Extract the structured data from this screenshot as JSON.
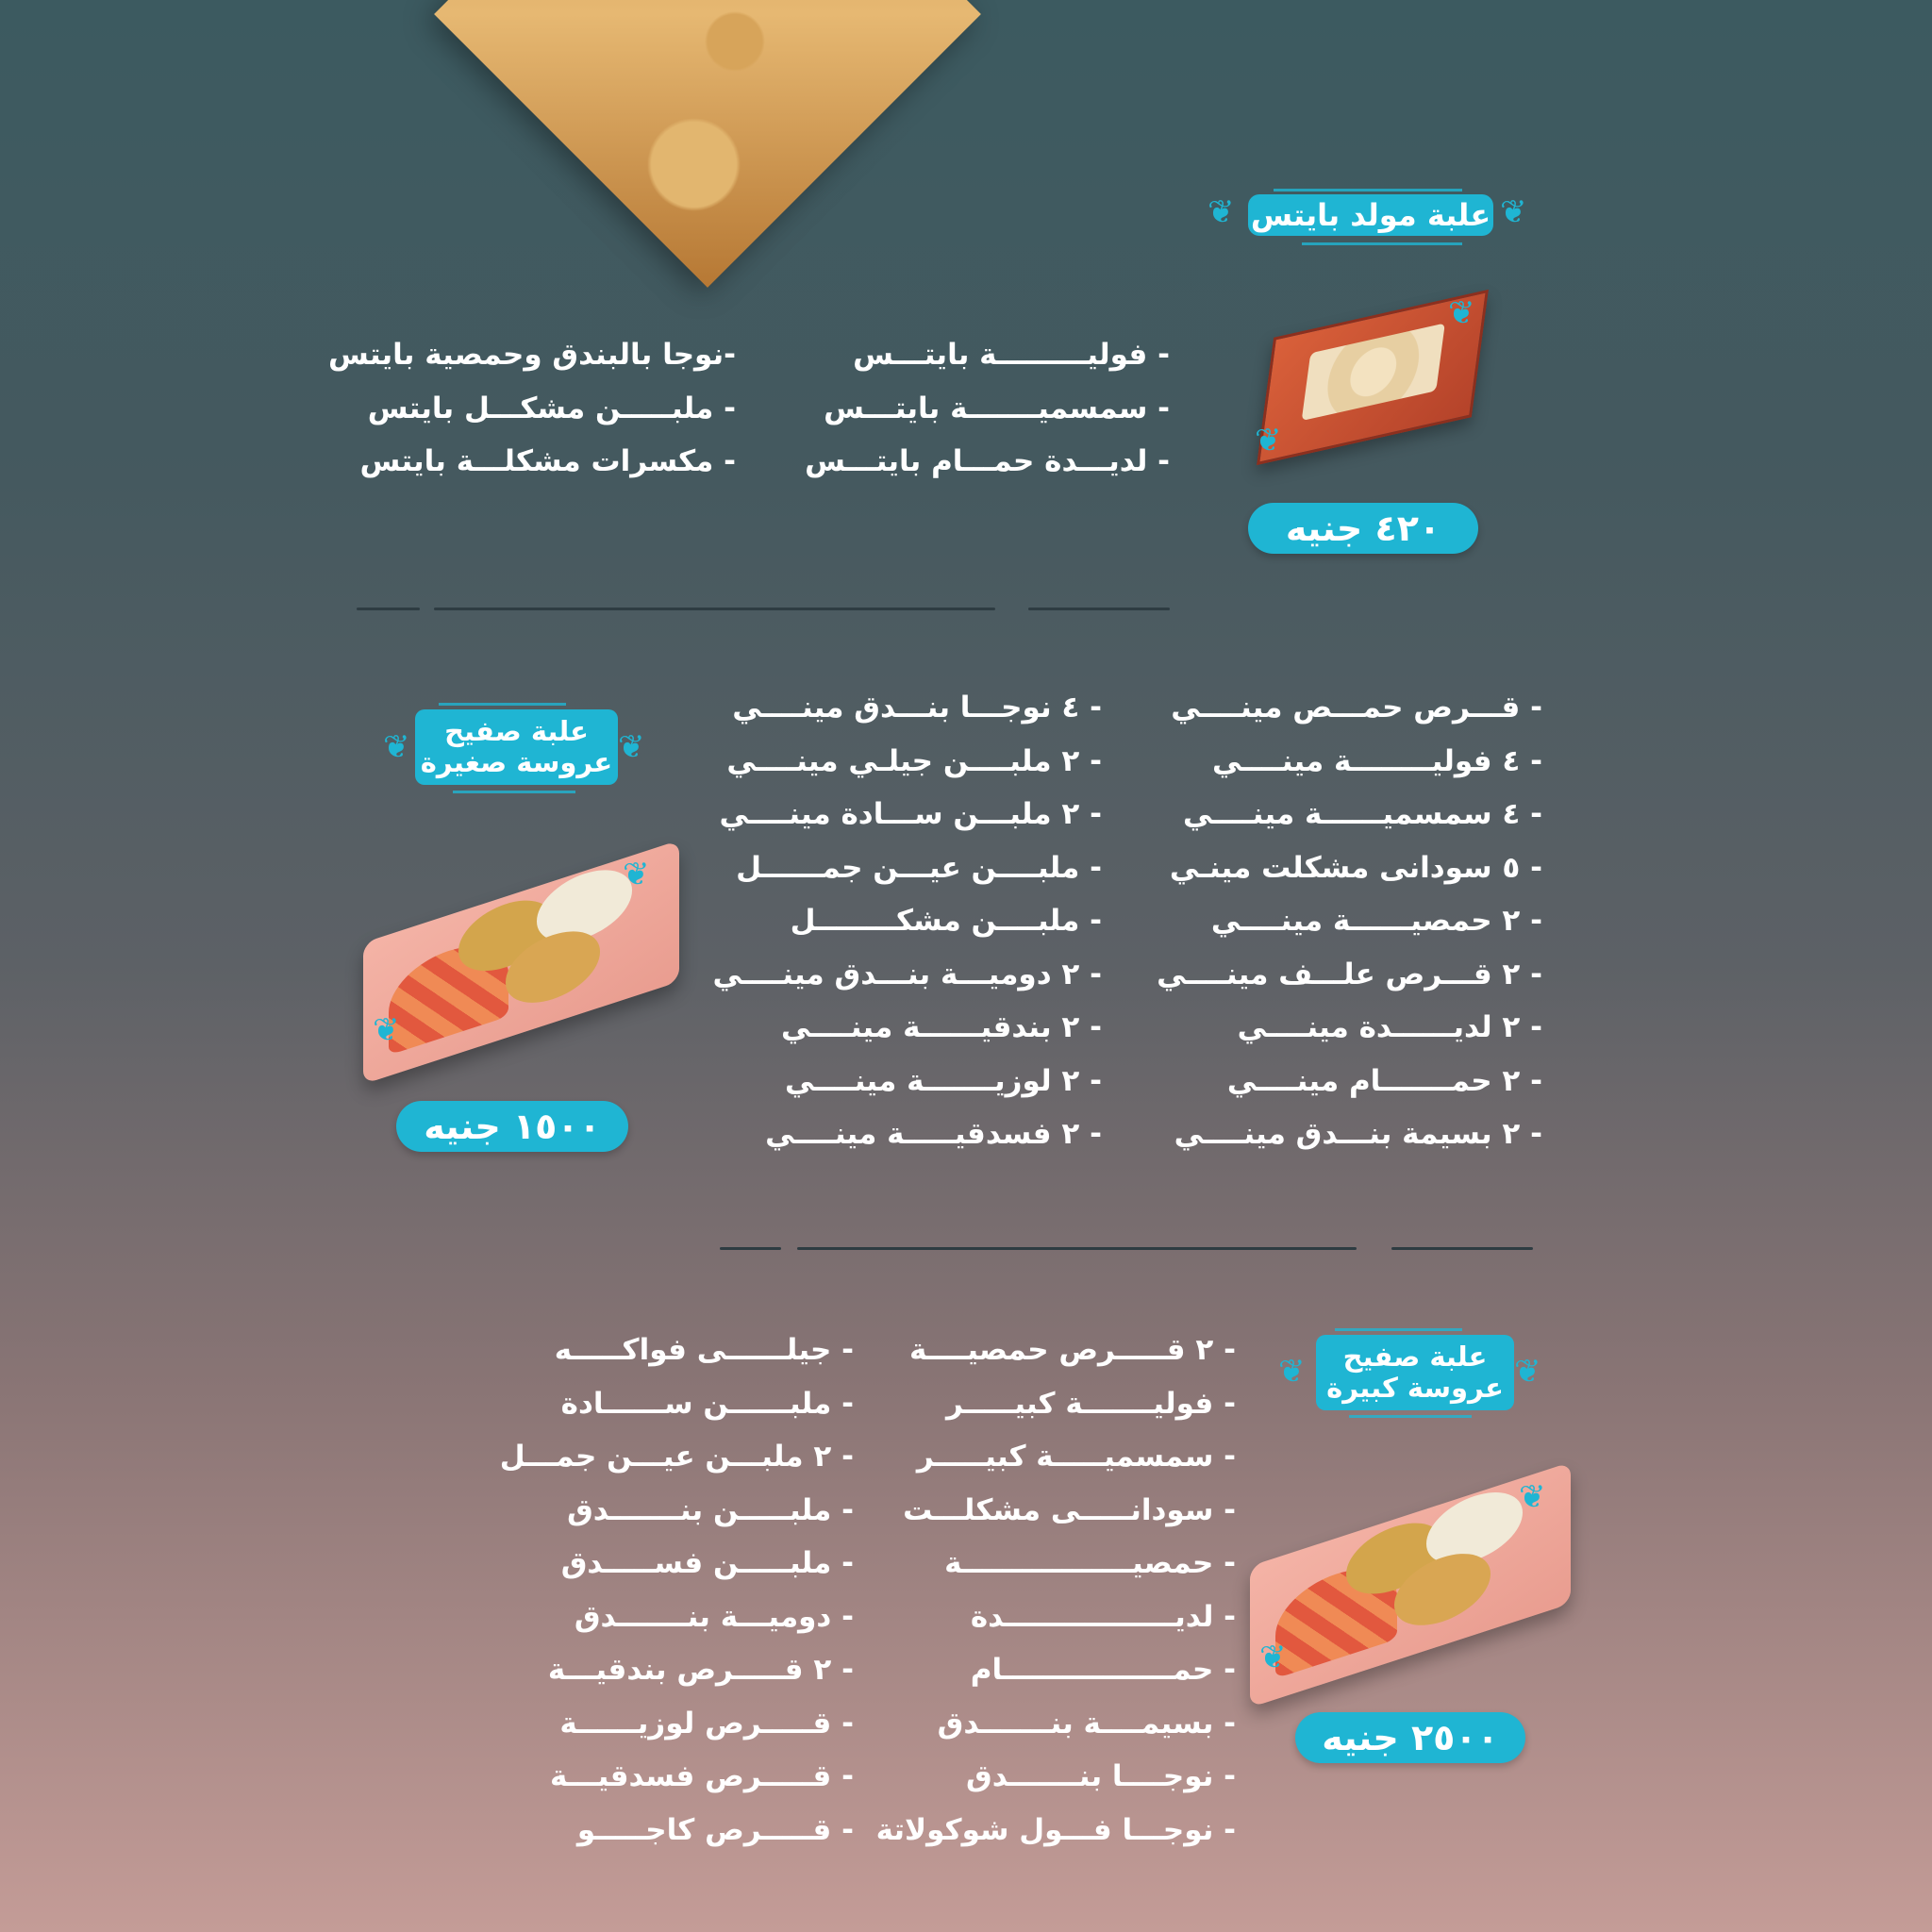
{
  "colors": {
    "accent": "#1fb5d3",
    "text": "#ffffff"
  },
  "section1": {
    "title": "علبة مولد بايتس",
    "price": "٤٢٠ جنيه",
    "col_right": [
      "- فوليـــــــــة بايتـــس",
      "- سمسميـــــــة بايتـــس",
      "- لديـــدة حمـــام بايتـــس"
    ],
    "col_left": [
      "-نوجا بالبندق وحمصية بايتس",
      "- ملبـــــن مشكـــل بايتس",
      "- مكسرات مشكلـــة بايتس"
    ]
  },
  "section2": {
    "title_line1": "علبة صفيح",
    "title_line2": "عروسة صغيرة",
    "price": "١٥٠٠ جنيه",
    "col_right": [
      "- قـــرص حمـــص مينــــي",
      "- ٤ فوليــــــــة مينــــي",
      "- ٤ سمسميــــــة مينــــي",
      "- ٥ سودانى مشكلت مينـي",
      "- ٢ حمصيــــــة مينــــي",
      "- ٢ قـــرص علـــف مينــــي",
      "- ٢ لديــــــدة مينــــي",
      "- ٢ حمـــــــام مينــــي",
      "- ٢ بسيمة بنـــدق مينــــي"
    ],
    "col_left": [
      "- ٤ نوجـــا بنـــدق مينــــي",
      "- ٢ ملبــــن جيلـي مينــــي",
      "- ٢ ملبـــن ســـادة مينــــي",
      "- ملبــــن عيـــن جمــــــل",
      "- ملبــــن مشكــــــــل",
      "- ٢ دوميـــة بنـــدق مينــــي",
      "- ٢ بندقيــــــة مينــــي",
      "- ٢ لوزيـــــــة مينــــي",
      "- ٢ فسدقيـــــة مينــــي"
    ]
  },
  "section3": {
    "title_line1": "علبة صفيح",
    "title_line2": "عروسة كبيرة",
    "price": "٢٥٠٠ جنيه",
    "col_right": [
      "- ٢ قـــــرص حمصيــــة",
      "- فوليـــــــة كبيـــــر",
      "- سمسميـــــة كبيـــــر",
      "- سودانـــــى مشكلـــت",
      "- حمصيـــــــــــــــــة",
      "- لديـــــــــــــــــدة",
      "- حمـــــــــــــــــام",
      "- بسيمــــة بنـــــــدق",
      "- نوجــــا بنـــــــدق",
      "- نوجـــا فـــول شوكولاتة"
    ],
    "col_right_dummy": null,
    "col_left": [
      "- جيلــــــى فواكـــــه",
      "- ملبــــــن ســــــادة",
      "- ٢ ملبـــن عيـــن جمـــل",
      "- ملبـــــن بنـــــــدق",
      "- ملبـــــن فســـــدق",
      "- دوميـــة بنـــــــدق",
      "- ٢ قـــــرص بندقيـــة",
      "- قـــــرص لوزيــــــة",
      "- قـــــرص فسدقيـــة",
      "- قـــــرص كاجـــــو"
    ]
  }
}
